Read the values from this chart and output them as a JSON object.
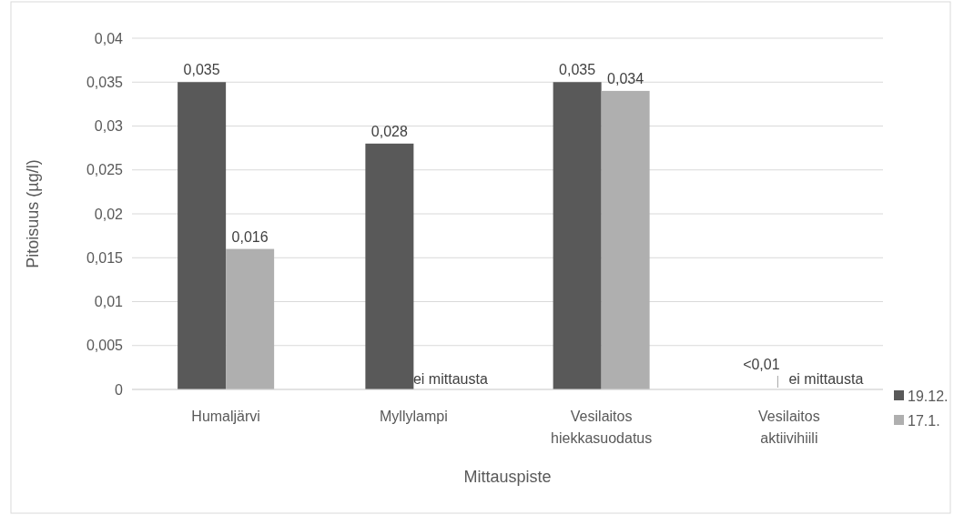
{
  "chart_data": {
    "type": "bar",
    "xlabel": "Mittauspiste",
    "ylabel": "Pitoisuus (µg/l)",
    "categories": [
      "Humaljärvi",
      "Myllylampi",
      "Vesilaitos hiekkasuodatus",
      "Vesilaitos aktiivihiili"
    ],
    "series": [
      {
        "name": "19.12.",
        "color": "#595959",
        "values": [
          0.035,
          0.028,
          0.035,
          null
        ],
        "value_labels": [
          "0,035",
          "0,028",
          "0,035",
          "<0,01"
        ]
      },
      {
        "name": "17.1.",
        "color": "#afafaf",
        "values": [
          0.016,
          null,
          0.034,
          null
        ],
        "value_labels": [
          "0,016",
          "ei mittausta",
          "0,034",
          "ei mittausta"
        ]
      }
    ],
    "ylim": [
      0,
      0.04
    ],
    "yticks": [
      {
        "value": 0,
        "label": "0"
      },
      {
        "value": 0.005,
        "label": "0,005"
      },
      {
        "value": 0.01,
        "label": "0,01"
      },
      {
        "value": 0.015,
        "label": "0,015"
      },
      {
        "value": 0.02,
        "label": "0,02"
      },
      {
        "value": 0.025,
        "label": "0,025"
      },
      {
        "value": 0.03,
        "label": "0,03"
      },
      {
        "value": 0.035,
        "label": "0,035"
      },
      {
        "value": 0.04,
        "label": "0,04"
      }
    ],
    "grid": "y",
    "legend": "right"
  }
}
